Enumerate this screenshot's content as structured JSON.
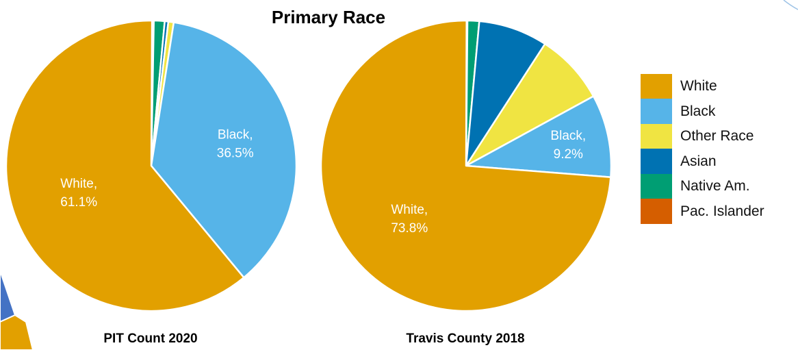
{
  "colors": {
    "White": "#E2A000",
    "Black": "#56B4E8",
    "Other Race": "#F0E442",
    "Asian": "#0072B2",
    "Native Am.": "#009E73",
    "Pac. Islander": "#D55E00"
  },
  "chart_data": [
    {
      "type": "pie",
      "title": "Primary Race",
      "caption": "PIT Count 2020",
      "categories": [
        "White",
        "Black",
        "Other Race",
        "Asian",
        "Native Am.",
        "Pac. Islander"
      ],
      "values": [
        61.1,
        36.5,
        0.6,
        0.4,
        1.2,
        0.2
      ],
      "data_labels": [
        {
          "category": "White",
          "name": "White,",
          "value": "61.1%"
        },
        {
          "category": "Black",
          "name": "Black,",
          "value": "36.5%"
        }
      ]
    },
    {
      "type": "pie",
      "caption": "Travis County 2018",
      "categories": [
        "White",
        "Black",
        "Other Race",
        "Asian",
        "Native Am.",
        "Pac. Islander"
      ],
      "values": [
        73.8,
        9.2,
        7.9,
        7.7,
        1.3,
        0.1
      ],
      "data_labels": [
        {
          "category": "White",
          "name": "White,",
          "value": "73.8%"
        },
        {
          "category": "Black",
          "name": "Black,",
          "value": "9.2%"
        }
      ]
    }
  ],
  "legend": {
    "placement": "right",
    "items": [
      "White",
      "Black",
      "Other Race",
      "Asian",
      "Native Am.",
      "Pac. Islander"
    ]
  }
}
